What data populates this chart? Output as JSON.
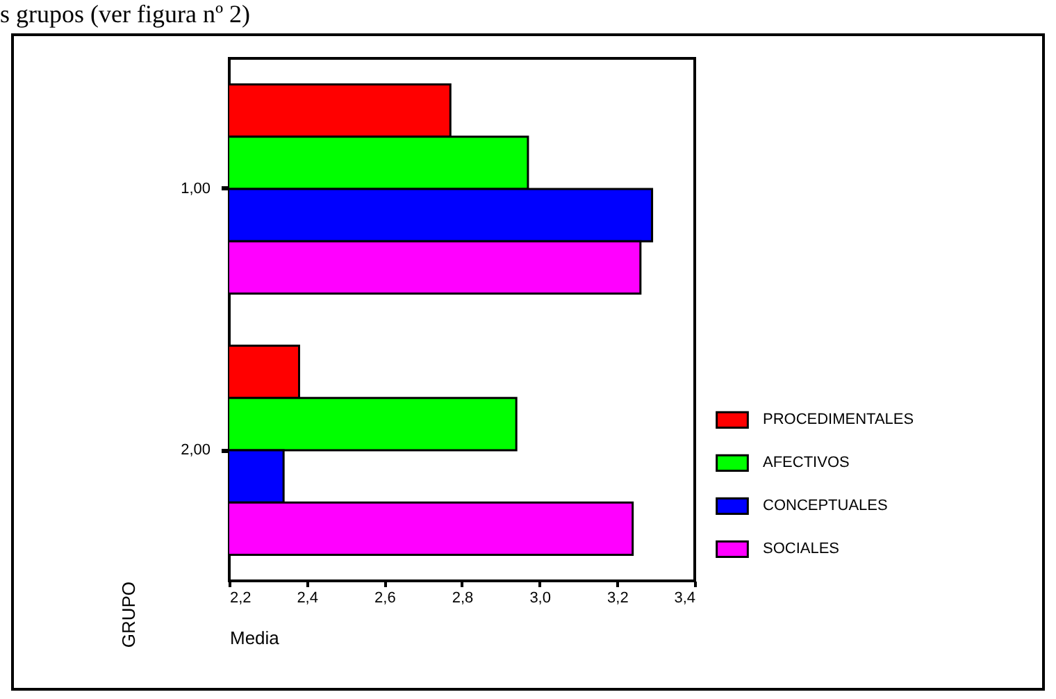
{
  "chart_data": {
    "type": "bar",
    "orientation": "horizontal",
    "xlabel": "Media",
    "ylabel": "GRUPO",
    "annotations": [
      "s grupos (ver figura nº 2)"
    ],
    "categories": [
      "1,00",
      "2,00"
    ],
    "series": [
      {
        "name": "PROCEDIMENTALES",
        "color": "#ff0000",
        "values": [
          2.77,
          2.38
        ]
      },
      {
        "name": "AFECTIVOS",
        "color": "#00ff00",
        "values": [
          2.97,
          2.94
        ]
      },
      {
        "name": "CONCEPTUALES",
        "color": "#0000ff",
        "values": [
          3.29,
          2.34
        ]
      },
      {
        "name": "SOCIALES",
        "color": "#ff00ff",
        "values": [
          3.26,
          3.24
        ]
      }
    ],
    "xlim": [
      2.2,
      3.4
    ],
    "xticks": [
      {
        "value": 2.2,
        "label": "2,2"
      },
      {
        "value": 2.4,
        "label": "2,4"
      },
      {
        "value": 2.6,
        "label": "2,6"
      },
      {
        "value": 2.8,
        "label": "2,8"
      },
      {
        "value": 3.0,
        "label": "3,0"
      },
      {
        "value": 3.2,
        "label": "3,2"
      },
      {
        "value": 3.4,
        "label": "3,4"
      }
    ],
    "grid": false,
    "legend": "right"
  }
}
